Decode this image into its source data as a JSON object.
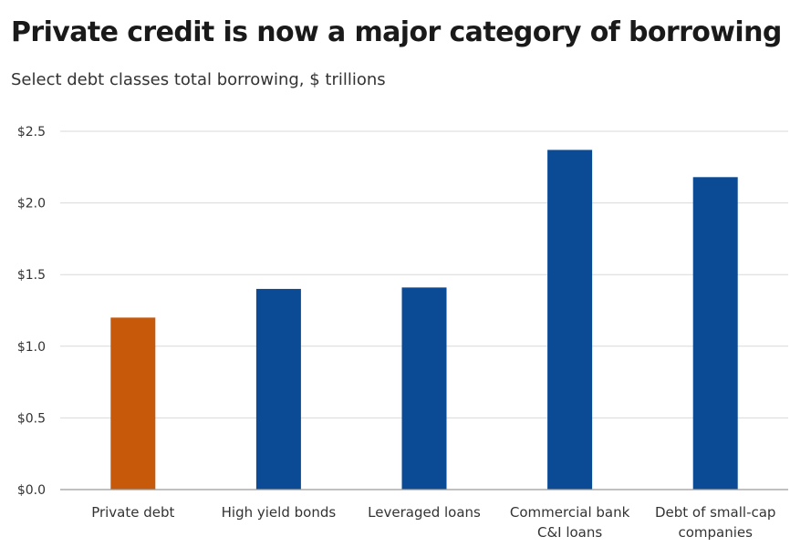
{
  "chart_data": {
    "type": "bar",
    "title": "Private credit is now a major category of borrowing",
    "subtitle": "Select debt classes total borrowing, $ trillions",
    "categories": [
      [
        "Private debt"
      ],
      [
        "High yield bonds"
      ],
      [
        "Leveraged loans"
      ],
      [
        "Commercial bank",
        "C&I loans"
      ],
      [
        "Debt of small-cap",
        "companies"
      ]
    ],
    "values": [
      1.2,
      1.4,
      1.41,
      2.37,
      2.18
    ],
    "bar_colors": [
      "#c65a0a",
      "#0b4a94",
      "#0b4a94",
      "#0b4a94",
      "#0b4a94"
    ],
    "ylim": [
      0,
      2.5
    ],
    "y_ticks": [
      0,
      0.5,
      1.0,
      1.5,
      2.0,
      2.5
    ],
    "y_tick_labels": [
      "$0.0",
      "$0.5",
      "$1.0",
      "$1.5",
      "$2.0",
      "$2.5"
    ],
    "grid": true,
    "grid_color": "#d9d9d9",
    "axis_color": "#9a9a9a"
  }
}
